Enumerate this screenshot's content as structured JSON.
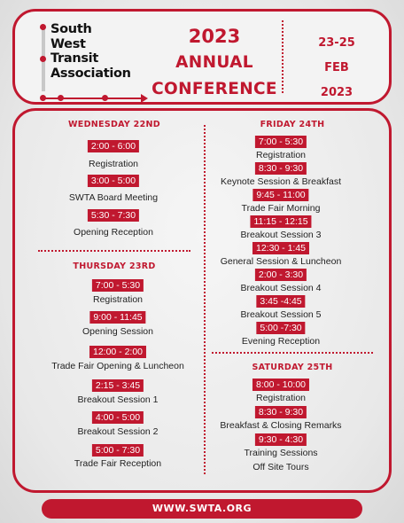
{
  "logo": {
    "lines": [
      "South",
      "West",
      "Transit",
      "Association"
    ]
  },
  "title": {
    "year": "2023",
    "line1": "ANNUAL",
    "line2": "CONFERENCE"
  },
  "dates": {
    "days": "23-25",
    "month": "FEB",
    "year": "2023"
  },
  "wednesday": {
    "heading": "WEDNESDAY 22ND",
    "items": [
      {
        "time": "2:00 - 6:00",
        "label": "Registration"
      },
      {
        "time": "3:00 - 5:00",
        "label": "SWTA Board Meeting"
      },
      {
        "time": "5:30 - 7:30",
        "label": "Opening Reception"
      }
    ]
  },
  "thursday": {
    "heading": "THURSDAY 23RD",
    "items": [
      {
        "time": "7:00 - 5:30",
        "label": "Registration"
      },
      {
        "time": "9:00 - 11:45",
        "label": "Opening Session"
      },
      {
        "time": "12:00 - 2:00",
        "label": "Trade Fair Opening & Luncheon"
      },
      {
        "time": "2:15 - 3:45",
        "label": "Breakout Session 1"
      },
      {
        "time": "4:00 - 5:00",
        "label": "Breakout Session 2"
      },
      {
        "time": "5:00 - 7:30",
        "label": "Trade Fair Reception"
      }
    ]
  },
  "friday": {
    "heading": "FRIDAY 24TH",
    "items": [
      {
        "time": "7:00 - 5:30",
        "label": "Registration"
      },
      {
        "time": "8:30 - 9:30",
        "label": "Keynote Session & Breakfast"
      },
      {
        "time": "9:45 - 11:00",
        "label": "Trade Fair Morning"
      },
      {
        "time": "11:15 - 12:15",
        "label": "Breakout Session 3"
      },
      {
        "time": "12:30 - 1:45",
        "label": "General Session & Luncheon"
      },
      {
        "time": "2:00 - 3:30",
        "label": "Breakout Session 4"
      },
      {
        "time": "3:45 -4:45",
        "label": "Breakout Session 5"
      },
      {
        "time": "5:00 -7:30",
        "label": "Evening Reception"
      }
    ]
  },
  "saturday": {
    "heading": "SATURDAY 25TH",
    "items": [
      {
        "time": "8:00 - 10:00",
        "label": "Registration"
      },
      {
        "time": "8:30 - 9:30",
        "label": "Breakfast & Closing Remarks"
      },
      {
        "time": "9:30 - 4:30",
        "label": "Training Sessions"
      }
    ],
    "extra_label": "Off Site Tours"
  },
  "footer": {
    "url": "WWW.SWTA.ORG"
  },
  "colors": {
    "accent": "#c0182f",
    "background": "#e6e6e6"
  }
}
